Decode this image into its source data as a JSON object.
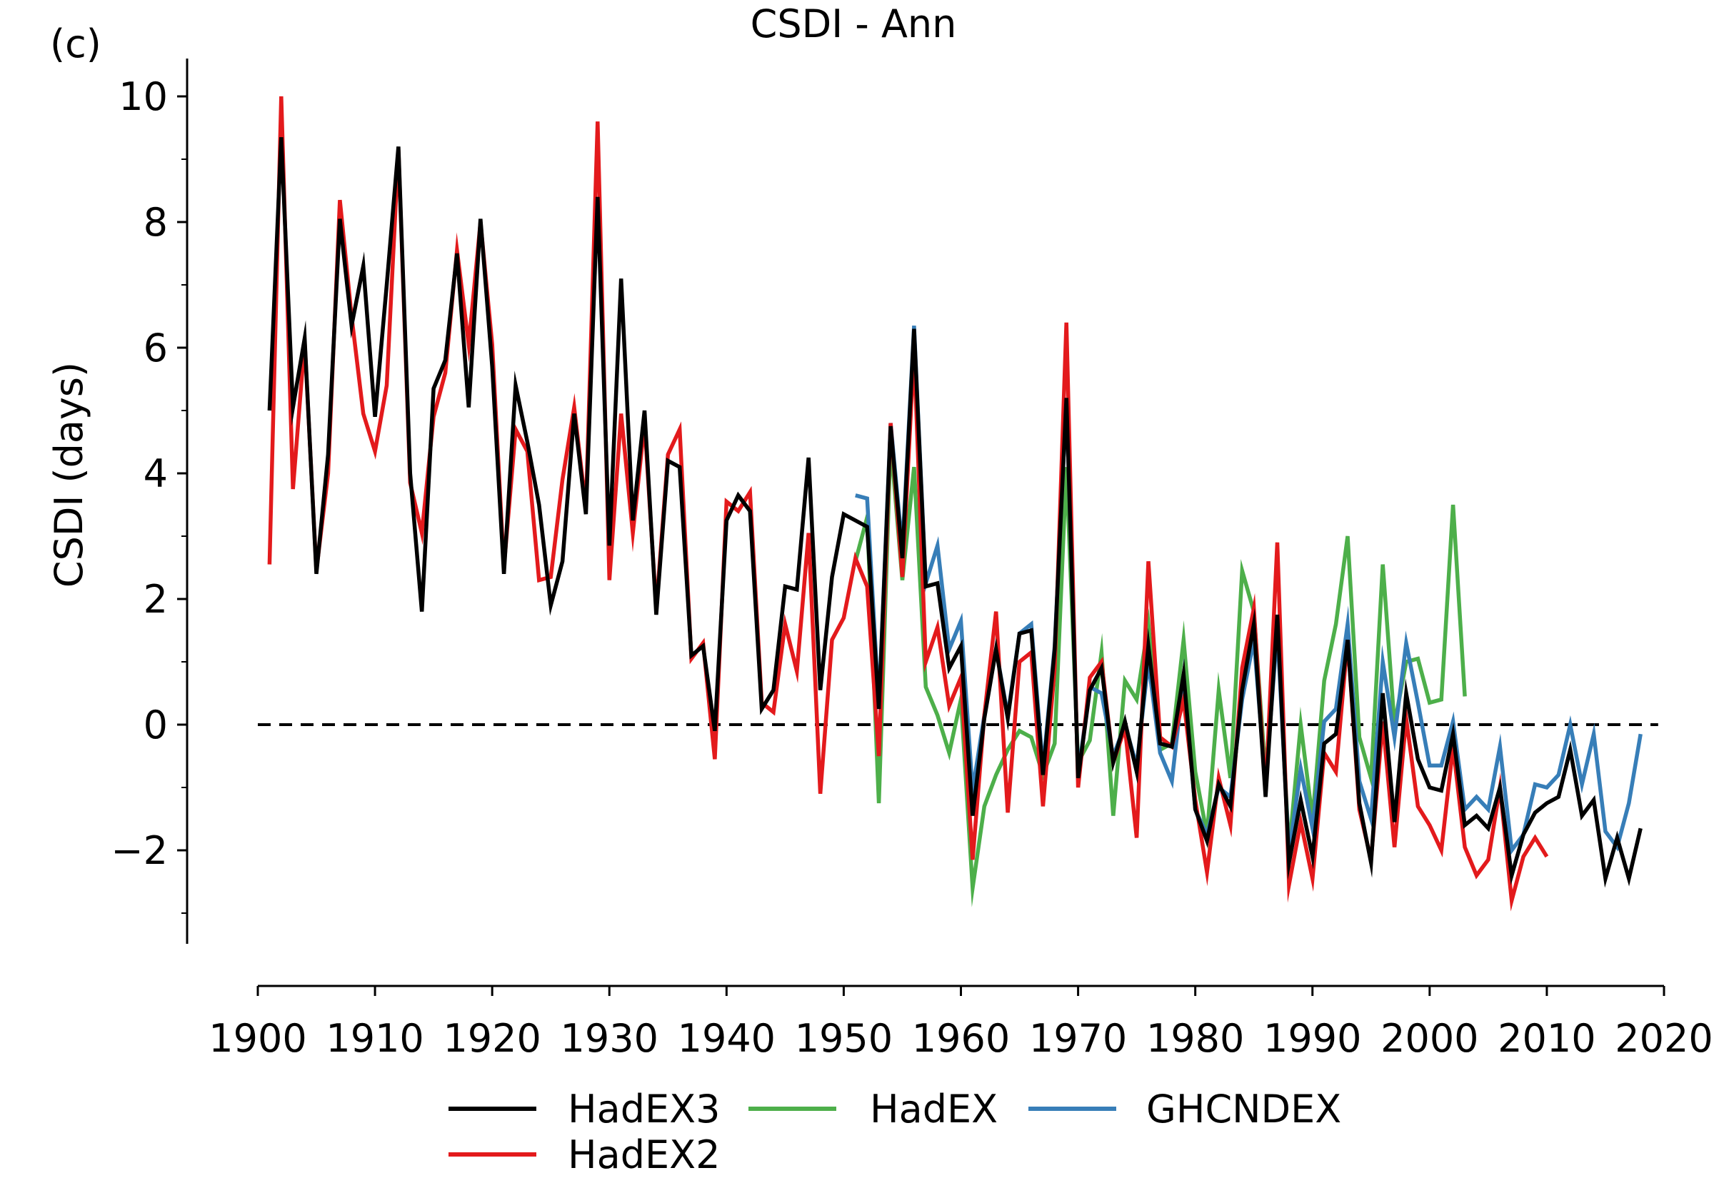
{
  "chart_data": {
    "type": "line",
    "panel_label": "(c)",
    "title": "CSDI - Ann",
    "xlabel": "",
    "ylabel": "CSDI (days)",
    "xlim": [
      1900,
      2020
    ],
    "ylim": [
      -3.5,
      10.6
    ],
    "xticks": [
      1900,
      1910,
      1920,
      1930,
      1940,
      1950,
      1960,
      1970,
      1980,
      1990,
      2000,
      2010,
      2020
    ],
    "yticks": [
      -2,
      0,
      2,
      4,
      6,
      8,
      10
    ],
    "ytick_labels": [
      "−2",
      "0",
      "2",
      "4",
      "6",
      "8",
      "10"
    ],
    "y_minor_ticks": [
      -3,
      -1,
      1,
      3,
      5,
      7,
      9
    ],
    "zero_line": {
      "y": 0,
      "style": "dashed",
      "color": "#000000"
    },
    "grid": false,
    "legend_position": "bottom",
    "series": [
      {
        "name": "HadEX2",
        "color": "#e31a1c",
        "x_start": 1901,
        "values": [
          2.55,
          10.0,
          3.75,
          6.1,
          2.45,
          4.0,
          8.35,
          6.5,
          4.95,
          4.35,
          5.4,
          9.15,
          3.85,
          3.05,
          4.9,
          5.6,
          7.55,
          6.05,
          8.0,
          6.05,
          2.5,
          4.7,
          4.35,
          2.3,
          2.35,
          3.9,
          5.05,
          3.45,
          9.6,
          2.3,
          4.95,
          3.05,
          4.8,
          1.85,
          4.3,
          4.7,
          1.05,
          1.3,
          -0.55,
          3.55,
          3.4,
          3.7,
          0.35,
          0.2,
          1.6,
          0.85,
          3.05,
          -1.1,
          1.35,
          1.7,
          2.65,
          2.2,
          -0.5,
          4.8,
          2.35,
          5.95,
          1.0,
          1.55,
          0.3,
          0.75,
          -2.15,
          0.15,
          1.8,
          -1.4,
          1.0,
          1.15,
          -1.3,
          0.9,
          6.4,
          -1.0,
          0.75,
          1.0,
          -0.6,
          -0.05,
          -1.8,
          2.6,
          -0.2,
          -0.35,
          0.4,
          -1.2,
          -2.35,
          -0.85,
          -1.6,
          0.9,
          1.85,
          -1.1,
          2.9,
          -2.55,
          -1.55,
          -2.45,
          -0.45,
          -0.75,
          1.35,
          -1.35,
          -2.15,
          0.05,
          -1.95,
          0.1,
          -1.3,
          -1.6,
          -2.0,
          -0.35,
          -1.95,
          -2.4,
          -2.15,
          -1.0,
          -2.8,
          -2.1,
          -1.8,
          -2.1
        ]
      },
      {
        "name": "HadEX3",
        "color": "#000000",
        "x_start": 1901,
        "values": [
          5.0,
          9.35,
          5.05,
          6.15,
          2.4,
          4.3,
          8.05,
          6.35,
          7.3,
          4.9,
          7.0,
          9.2,
          4.0,
          1.8,
          5.35,
          5.8,
          7.5,
          5.05,
          8.05,
          5.7,
          2.4,
          5.4,
          4.5,
          3.5,
          1.9,
          2.6,
          4.95,
          3.35,
          8.4,
          2.85,
          7.1,
          3.25,
          5.0,
          1.75,
          4.2,
          4.1,
          1.1,
          1.25,
          -0.1,
          3.25,
          3.65,
          3.4,
          0.25,
          0.55,
          2.2,
          2.15,
          4.25,
          0.55,
          2.35,
          3.35,
          3.25,
          3.15,
          0.25,
          4.75,
          2.65,
          6.3,
          2.2,
          2.25,
          0.9,
          1.25,
          -1.45,
          0.1,
          1.2,
          0.1,
          1.45,
          1.5,
          -0.8,
          1.2,
          5.2,
          -0.85,
          0.55,
          0.9,
          -0.6,
          0.05,
          -0.75,
          1.25,
          -0.3,
          -0.35,
          0.8,
          -1.35,
          -1.85,
          -0.95,
          -1.3,
          0.55,
          1.6,
          -1.15,
          1.75,
          -2.2,
          -1.2,
          -2.1,
          -0.3,
          -0.15,
          1.35,
          -1.25,
          -2.2,
          0.5,
          -1.55,
          0.5,
          -0.55,
          -1.0,
          -1.05,
          -0.15,
          -1.6,
          -1.45,
          -1.65,
          -1.0,
          -2.4,
          -1.75,
          -1.4,
          -1.25,
          -1.15,
          -0.4,
          -1.45,
          -1.2,
          -2.45,
          -1.8,
          -2.45,
          -1.65
        ]
      },
      {
        "name": "HadEX",
        "color": "#4daf4a",
        "x_start": 1951,
        "values": [
          2.6,
          3.3,
          -1.25,
          4.5,
          2.3,
          4.1,
          0.6,
          0.15,
          -0.45,
          0.4,
          -2.6,
          -1.3,
          -0.8,
          -0.4,
          -0.1,
          -0.2,
          -0.8,
          -0.3,
          4.1,
          -0.6,
          -0.25,
          1.15,
          -1.45,
          0.7,
          0.4,
          1.6,
          -0.4,
          -0.3,
          1.35,
          -0.75,
          -1.75,
          0.55,
          -0.85,
          2.45,
          1.8,
          -0.8,
          1.6,
          -2.0,
          0.0,
          -1.5,
          0.7,
          1.6,
          3.0,
          -0.2,
          -0.85,
          2.55,
          0.0,
          1.0,
          1.05,
          0.35,
          0.4,
          3.5,
          0.45
        ]
      },
      {
        "name": "GHCNDEX",
        "color": "#377eb8",
        "x_start": 1951,
        "values": [
          3.65,
          3.6,
          0.3,
          4.8,
          2.8,
          6.35,
          2.25,
          2.85,
          1.2,
          1.65,
          -1.05,
          0.15,
          1.2,
          0.15,
          1.45,
          1.6,
          -0.7,
          1.25,
          5.2,
          -0.8,
          0.6,
          0.5,
          -0.5,
          0.0,
          -0.65,
          1.0,
          -0.45,
          -0.9,
          0.75,
          -1.35,
          -1.75,
          -1.0,
          -1.15,
          0.4,
          1.35,
          -0.95,
          1.5,
          -2.05,
          -0.7,
          -1.65,
          0.05,
          0.25,
          1.6,
          -0.9,
          -1.5,
          1.0,
          -0.2,
          1.3,
          0.35,
          -0.65,
          -0.65,
          0.05,
          -1.35,
          -1.15,
          -1.35,
          -0.35,
          -2.0,
          -1.75,
          -0.95,
          -1.0,
          -0.8,
          0.0,
          -0.95,
          -0.15,
          -1.7,
          -1.95,
          -1.25,
          -0.15
        ]
      }
    ],
    "legend": [
      {
        "name": "HadEX3",
        "color": "#000000"
      },
      {
        "name": "HadEX2",
        "color": "#e31a1c"
      },
      {
        "name": "HadEX",
        "color": "#4daf4a"
      },
      {
        "name": "GHCNDEX",
        "color": "#377eb8"
      }
    ]
  }
}
